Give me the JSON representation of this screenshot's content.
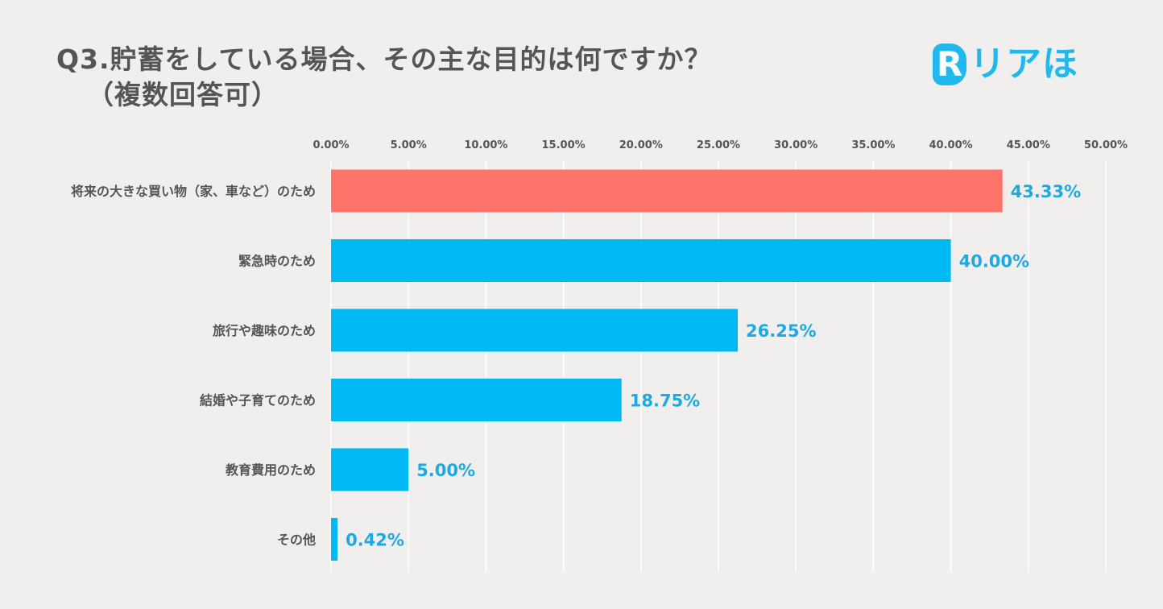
{
  "title": {
    "line1": "Q3.貯蓄をしている場合、その主な目的は何ですか？",
    "line2": "（複数回答可）"
  },
  "logo": {
    "mark": "R",
    "text": "リアほ"
  },
  "colors": {
    "highlight": "#ff746a",
    "bar": "#00b9f2",
    "label": "#1ea9e0",
    "text": "#555555",
    "grid": "#ffffff"
  },
  "chart_data": {
    "type": "bar",
    "orientation": "horizontal",
    "title": "Q3.貯蓄をしている場合、その主な目的は何ですか？（複数回答可）",
    "categories": [
      "将来の大きな買い物（家、車など）のため",
      "緊急時のため",
      "旅行や趣味のため",
      "結婚や子育てのため",
      "教育費用のため",
      "その他"
    ],
    "values": [
      43.33,
      40.0,
      26.25,
      18.75,
      5.0,
      0.42
    ],
    "value_labels": [
      "43.33%",
      "40.00%",
      "26.25%",
      "18.75%",
      "5.00%",
      "0.42%"
    ],
    "highlight_index": 0,
    "xlim": [
      0,
      50
    ],
    "xticks": [
      0,
      5,
      10,
      15,
      20,
      25,
      30,
      35,
      40,
      45,
      50
    ],
    "xtick_labels": [
      "0.00%",
      "5.00%",
      "10.00%",
      "15.00%",
      "20.00%",
      "25.00%",
      "30.00%",
      "35.00%",
      "40.00%",
      "45.00%",
      "50.00%"
    ],
    "xlabel": "",
    "ylabel": "",
    "grid": true,
    "axis_position": "top"
  }
}
